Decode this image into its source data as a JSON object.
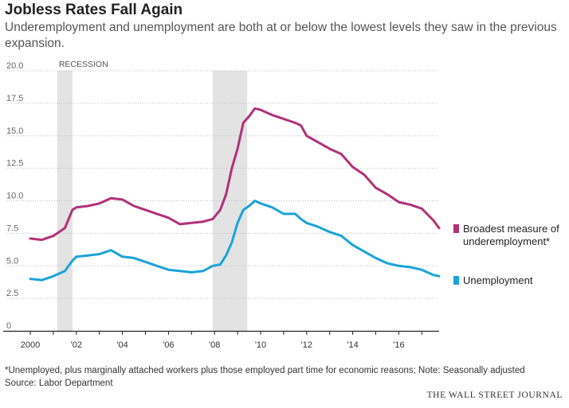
{
  "header": {
    "title": "Jobless Rates Fall Again",
    "subtitle": "Underemployment and unemployment are both at or below the lowest levels they saw in the previous expansion."
  },
  "footer": {
    "note": "*Unemployed, plus marginally attached workers plus those employed part time for economic reasons; Note: Seasonally adjusted",
    "source": "Source: Labor Department",
    "brand": "THE WALL STREET JOURNAL"
  },
  "colors": {
    "broad": "#b1307a",
    "unemployment": "#1aa3d9",
    "recession": "#e3e3e3",
    "grid": "#bdbdbd",
    "axis": "#222222"
  },
  "chart_data": {
    "type": "line",
    "title": "Jobless Rates Fall Again",
    "xlim": [
      2000,
      2017.75
    ],
    "ylim": [
      0,
      20
    ],
    "y_ticks": [
      0,
      2.5,
      5,
      7.5,
      10,
      12.5,
      15,
      17.5,
      20
    ],
    "y_tick_labels": [
      "0",
      "2.5",
      "5.0",
      "7.5",
      "10.0",
      "12.5",
      "15.0",
      "17.5",
      "20.0"
    ],
    "x_ticks": [
      2000,
      2002,
      2004,
      2006,
      2008,
      2010,
      2012,
      2014,
      2016
    ],
    "x_tick_labels": [
      "2000",
      "'02",
      "'04",
      "'06",
      "'08",
      "'10",
      "'12",
      "'14",
      "'16"
    ],
    "grid": "horizontal dotted",
    "legend": "right, at line ends",
    "recessions": [
      {
        "start": 2001.17,
        "end": 2001.83,
        "label": "RECESSION"
      },
      {
        "start": 2007.92,
        "end": 2009.42,
        "label": ""
      }
    ],
    "series": [
      {
        "name": "Broadest measure of underemployment*",
        "legend_lines": [
          "Broadest measure of",
          "underemployment*"
        ],
        "color": "#b1307a",
        "points": [
          [
            2000.0,
            7.1
          ],
          [
            2000.5,
            7.0
          ],
          [
            2001.0,
            7.3
          ],
          [
            2001.5,
            7.9
          ],
          [
            2001.83,
            9.3
          ],
          [
            2002.0,
            9.5
          ],
          [
            2002.5,
            9.6
          ],
          [
            2003.0,
            9.8
          ],
          [
            2003.5,
            10.2
          ],
          [
            2004.0,
            10.1
          ],
          [
            2004.5,
            9.6
          ],
          [
            2005.0,
            9.3
          ],
          [
            2005.5,
            9.0
          ],
          [
            2006.0,
            8.7
          ],
          [
            2006.5,
            8.2
          ],
          [
            2007.0,
            8.3
          ],
          [
            2007.5,
            8.4
          ],
          [
            2007.92,
            8.6
          ],
          [
            2008.25,
            9.3
          ],
          [
            2008.5,
            10.5
          ],
          [
            2008.75,
            12.5
          ],
          [
            2009.0,
            14.0
          ],
          [
            2009.25,
            16.0
          ],
          [
            2009.5,
            16.5
          ],
          [
            2009.75,
            17.1
          ],
          [
            2010.0,
            17.0
          ],
          [
            2010.5,
            16.6
          ],
          [
            2011.0,
            16.3
          ],
          [
            2011.5,
            16.0
          ],
          [
            2011.75,
            15.8
          ],
          [
            2012.0,
            15.0
          ],
          [
            2012.5,
            14.5
          ],
          [
            2013.0,
            14.0
          ],
          [
            2013.5,
            13.6
          ],
          [
            2014.0,
            12.6
          ],
          [
            2014.5,
            12.0
          ],
          [
            2015.0,
            11.0
          ],
          [
            2015.5,
            10.5
          ],
          [
            2016.0,
            9.9
          ],
          [
            2016.5,
            9.7
          ],
          [
            2017.0,
            9.4
          ],
          [
            2017.5,
            8.5
          ],
          [
            2017.75,
            7.9
          ]
        ]
      },
      {
        "name": "Unemployment",
        "legend_lines": [
          "Unemployment"
        ],
        "color": "#1aa3d9",
        "points": [
          [
            2000.0,
            4.0
          ],
          [
            2000.5,
            3.9
          ],
          [
            2001.0,
            4.2
          ],
          [
            2001.5,
            4.6
          ],
          [
            2001.83,
            5.4
          ],
          [
            2002.0,
            5.7
          ],
          [
            2002.5,
            5.8
          ],
          [
            2003.0,
            5.9
          ],
          [
            2003.5,
            6.2
          ],
          [
            2004.0,
            5.7
          ],
          [
            2004.5,
            5.6
          ],
          [
            2005.0,
            5.3
          ],
          [
            2005.5,
            5.0
          ],
          [
            2006.0,
            4.7
          ],
          [
            2006.5,
            4.6
          ],
          [
            2007.0,
            4.5
          ],
          [
            2007.5,
            4.6
          ],
          [
            2007.92,
            5.0
          ],
          [
            2008.25,
            5.1
          ],
          [
            2008.5,
            5.8
          ],
          [
            2008.75,
            6.8
          ],
          [
            2009.0,
            8.3
          ],
          [
            2009.25,
            9.3
          ],
          [
            2009.5,
            9.6
          ],
          [
            2009.75,
            10.0
          ],
          [
            2010.0,
            9.8
          ],
          [
            2010.5,
            9.5
          ],
          [
            2011.0,
            9.0
          ],
          [
            2011.5,
            9.0
          ],
          [
            2011.75,
            8.6
          ],
          [
            2012.0,
            8.3
          ],
          [
            2012.5,
            8.0
          ],
          [
            2013.0,
            7.6
          ],
          [
            2013.5,
            7.3
          ],
          [
            2014.0,
            6.6
          ],
          [
            2014.5,
            6.1
          ],
          [
            2015.0,
            5.6
          ],
          [
            2015.5,
            5.2
          ],
          [
            2016.0,
            5.0
          ],
          [
            2016.5,
            4.9
          ],
          [
            2017.0,
            4.7
          ],
          [
            2017.5,
            4.3
          ],
          [
            2017.75,
            4.2
          ]
        ]
      }
    ]
  }
}
